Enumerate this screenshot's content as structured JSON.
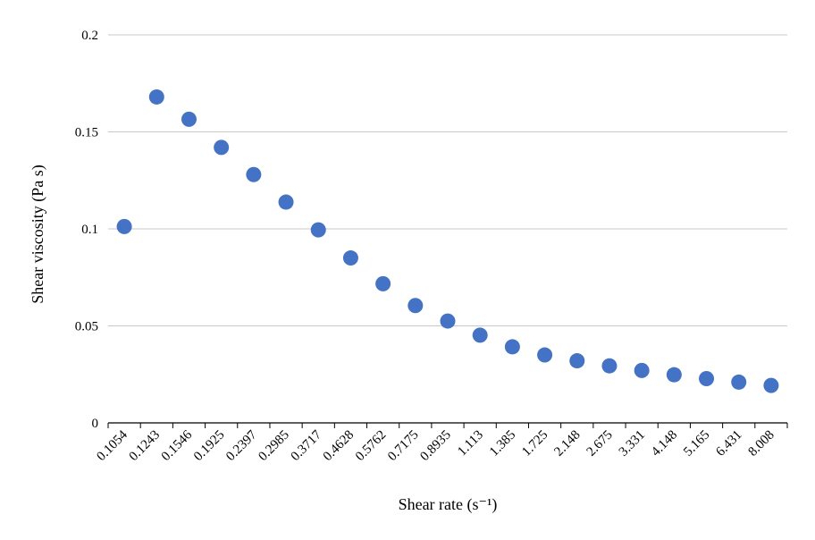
{
  "chart_data": {
    "type": "scatter",
    "xlabel": "Shear rate (s⁻¹)",
    "ylabel": "Shear viscosity (Pa s)",
    "categories": [
      "0.1054",
      "0.1243",
      "0.1546",
      "0.1925",
      "0.2397",
      "0.2985",
      "0.3717",
      "0.4628",
      "0.5762",
      "0.7175",
      "0.8935",
      "1.113",
      "1.385",
      "1.725",
      "2.148",
      "2.675",
      "3.331",
      "4.148",
      "5.165",
      "6.431",
      "8.008"
    ],
    "values": [
      0.1012,
      0.168,
      0.1565,
      0.142,
      0.128,
      0.1138,
      0.0995,
      0.085,
      0.0717,
      0.0605,
      0.0525,
      0.0452,
      0.0392,
      0.035,
      0.032,
      0.0294,
      0.027,
      0.0248,
      0.0228,
      0.021,
      0.0193
    ],
    "ylim": [
      0,
      0.2
    ],
    "yticks": [
      "0",
      "0.05",
      "0.1",
      "0.15",
      "0.2"
    ],
    "grid": true,
    "color": "#4472c4"
  }
}
